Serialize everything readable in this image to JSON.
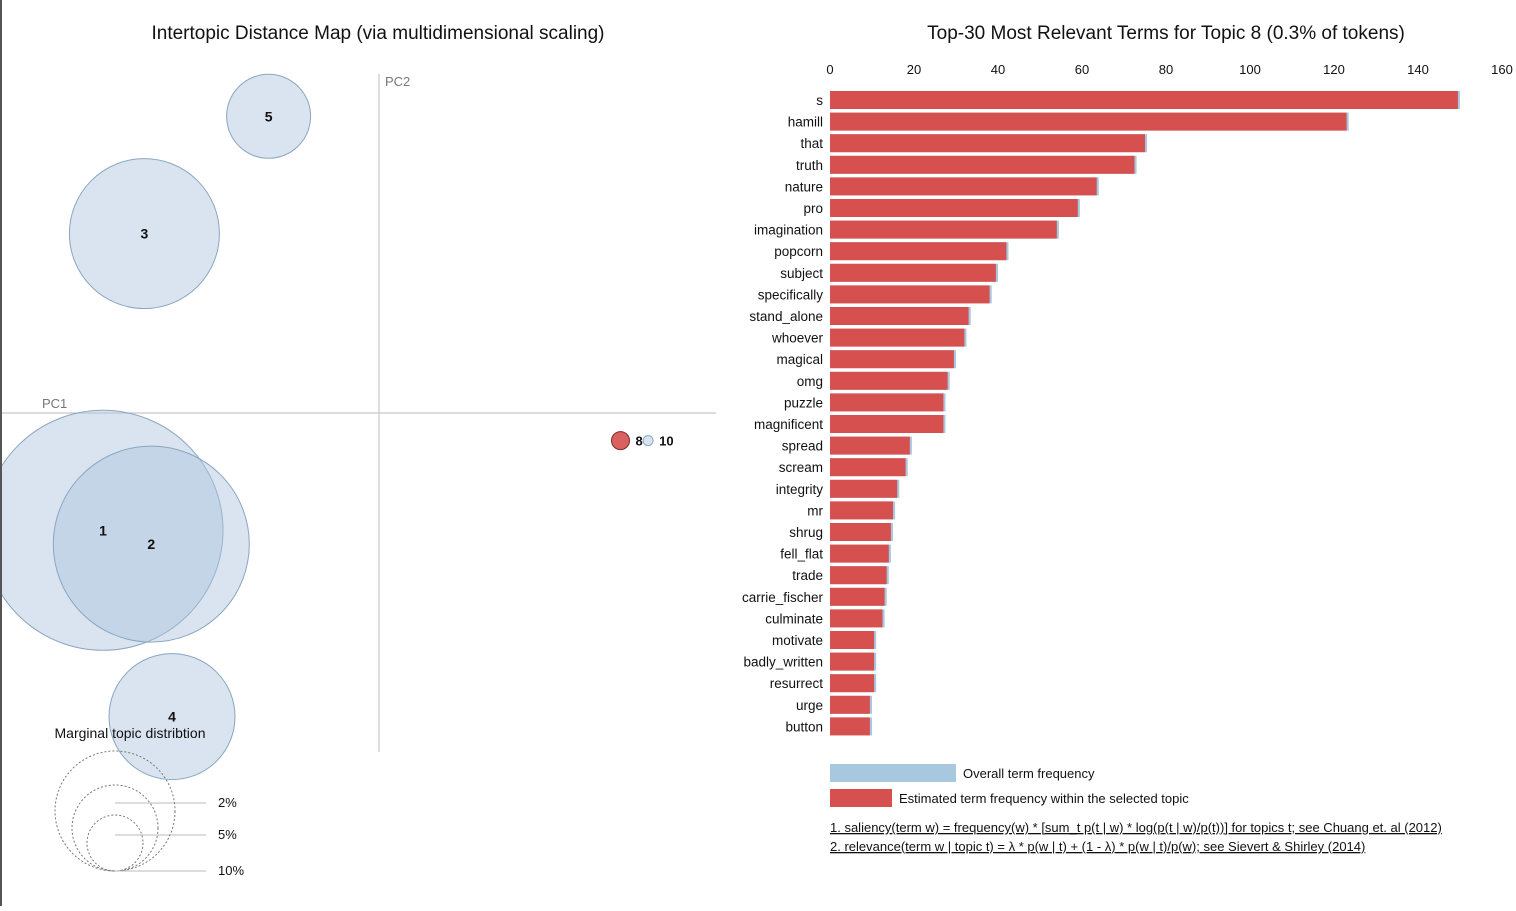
{
  "left_panel": {
    "title": "Intertopic Distance Map (via multidimensional scaling)",
    "pc1_label": "PC1",
    "pc2_label": "PC2",
    "topics": [
      {
        "label": "1",
        "cx": -0.4,
        "cy": -0.17,
        "r": 120,
        "selected": false
      },
      {
        "label": "2",
        "cx": -0.33,
        "cy": -0.19,
        "r": 98,
        "selected": false
      },
      {
        "label": "3",
        "cx": -0.34,
        "cy": 0.26,
        "r": 75,
        "selected": false
      },
      {
        "label": "4",
        "cx": -0.3,
        "cy": -0.44,
        "r": 63,
        "selected": false
      },
      {
        "label": "5",
        "cx": -0.16,
        "cy": 0.43,
        "r": 42,
        "selected": false
      },
      {
        "label": "8",
        "cx": 0.35,
        "cy": -0.04,
        "r": 9,
        "selected": true
      },
      {
        "label": "10",
        "cx": 0.39,
        "cy": -0.04,
        "r": 5,
        "selected": false
      }
    ],
    "marginal": {
      "title": "Marginal topic distribtion",
      "levels": [
        {
          "label": "2%",
          "r": 28
        },
        {
          "label": "5%",
          "r": 43
        },
        {
          "label": "10%",
          "r": 60
        }
      ]
    }
  },
  "right_panel": {
    "title": "Top-30 Most Relevant Terms for Topic 8 (0.3% of tokens)",
    "legend_overall": "Overall term frequency",
    "legend_topic": "Estimated term frequency within the selected topic",
    "footnote_1": "1. saliency(term w) = frequency(w) * [sum_t p(t | w) * log(p(t | w)/p(t))] for topics t; see Chuang et. al (2012)",
    "footnote_2": "2. relevance(term w | topic t) = λ * p(w | t) + (1 - λ) * p(w | t)/p(w); see Sievert & Shirley (2014)"
  },
  "colors": {
    "topic_circle": "#aac4dd",
    "topic_stroke": "#8aa6c0",
    "selected_topic": "#d6504f",
    "overall_bar": "#a8c8e0",
    "topic_bar": "#d6504f",
    "axis_line": "#c8c8c8"
  },
  "chart_data": {
    "type": "bar",
    "orientation": "horizontal",
    "title": "Top-30 Most Relevant Terms for Topic 8 (0.3% of tokens)",
    "xlim": [
      0,
      160
    ],
    "xticks": [
      0,
      20,
      40,
      60,
      80,
      100,
      120,
      140,
      160
    ],
    "categories": [
      "s",
      "hamill",
      "that",
      "truth",
      "nature",
      "pro",
      "imagination",
      "popcorn",
      "subject",
      "specifically",
      "stand_alone",
      "whoever",
      "magical",
      "omg",
      "puzzle",
      "magnificent",
      "spread",
      "scream",
      "integrity",
      "mr",
      "shrug",
      "fell_flat",
      "trade",
      "carrie_fischer",
      "culminate",
      "motivate",
      "badly_written",
      "resurrect",
      "urge",
      "button"
    ],
    "series": [
      {
        "name": "Overall term frequency",
        "values": [
          150,
          123.5,
          75.5,
          73,
          64,
          59.5,
          54.5,
          42.5,
          40,
          38.5,
          33.5,
          32.5,
          30,
          28.5,
          27.5,
          27.5,
          19.5,
          18.5,
          16.5,
          15.5,
          15,
          14.5,
          14,
          13.5,
          13,
          11,
          11,
          11,
          10,
          10
        ]
      },
      {
        "name": "Estimated term frequency within the selected topic",
        "values": [
          149.5,
          123,
          75,
          72.5,
          63.5,
          59,
          54,
          42,
          39.5,
          38,
          33,
          32,
          29.5,
          28,
          27,
          27,
          19,
          18,
          16,
          15,
          14.5,
          14,
          13.5,
          13,
          12.5,
          10.5,
          10.5,
          10.5,
          9.5,
          9.5
        ]
      }
    ]
  }
}
